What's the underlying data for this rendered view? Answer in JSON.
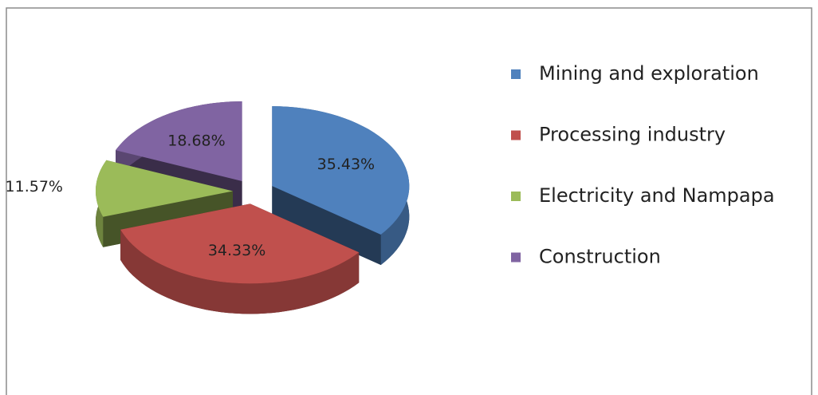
{
  "chart_data": {
    "type": "pie",
    "categories": [
      "Mining and exploration",
      "Processing industry",
      "Electricity and Nampapa",
      "Construction"
    ],
    "values": [
      35.43,
      34.33,
      11.57,
      18.68
    ],
    "value_labels": [
      "35.43%",
      "34.33%",
      "11.57%",
      "18.68%"
    ],
    "colors": [
      "#4f81bd",
      "#c0504d",
      "#9bbb59",
      "#8064a2"
    ],
    "legend": "right"
  }
}
